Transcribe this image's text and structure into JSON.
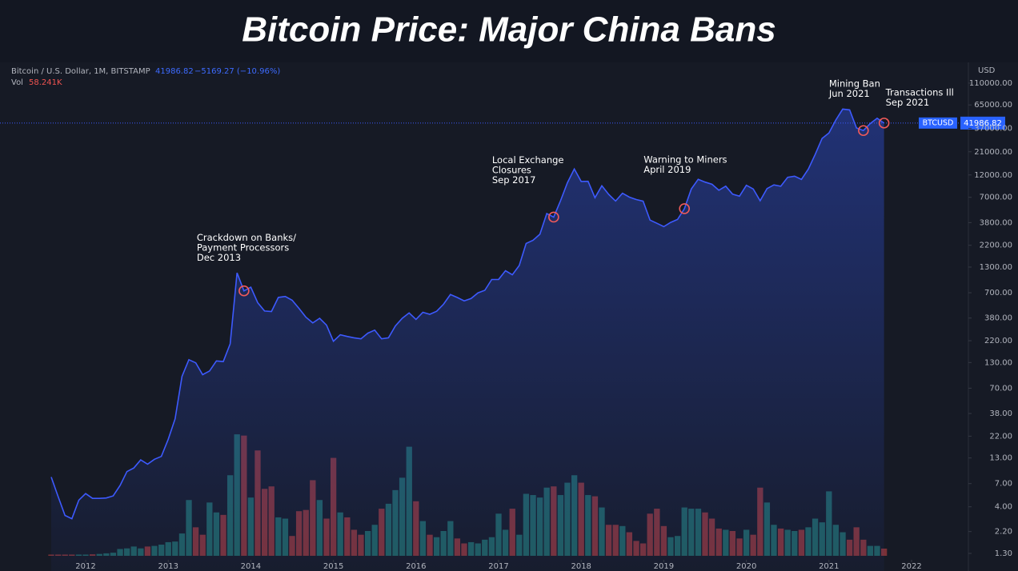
{
  "chart_data": {
    "type": "line",
    "title": "Bitcoin Price: Major China Bans",
    "header": {
      "symbol": "Bitcoin / U.S. Dollar, 1M, BITSTAMP",
      "change": "−5169.27 (−10.96%)",
      "vol_name": "Vol",
      "vol_value": "58.241K"
    },
    "currency": "USD",
    "x": [
      2011.583,
      2011.667,
      2011.75,
      2011.833,
      2011.917,
      2012,
      2012.083,
      2012.167,
      2012.25,
      2012.333,
      2012.417,
      2012.5,
      2012.583,
      2012.667,
      2012.75,
      2012.833,
      2012.917,
      2013,
      2013.083,
      2013.167,
      2013.25,
      2013.333,
      2013.417,
      2013.5,
      2013.583,
      2013.667,
      2013.75,
      2013.833,
      2013.917,
      2014,
      2014.083,
      2014.167,
      2014.25,
      2014.333,
      2014.417,
      2014.5,
      2014.583,
      2014.667,
      2014.75,
      2014.833,
      2014.917,
      2015,
      2015.083,
      2015.167,
      2015.25,
      2015.333,
      2015.417,
      2015.5,
      2015.583,
      2015.667,
      2015.75,
      2015.833,
      2015.917,
      2016,
      2016.083,
      2016.167,
      2016.25,
      2016.333,
      2016.417,
      2016.5,
      2016.583,
      2016.667,
      2016.75,
      2016.833,
      2016.917,
      2017,
      2017.083,
      2017.167,
      2017.25,
      2017.333,
      2017.417,
      2017.5,
      2017.583,
      2017.667,
      2017.75,
      2017.833,
      2017.917,
      2018,
      2018.083,
      2018.167,
      2018.25,
      2018.333,
      2018.417,
      2018.5,
      2018.583,
      2018.667,
      2018.75,
      2018.833,
      2018.917,
      2019,
      2019.083,
      2019.167,
      2019.25,
      2019.333,
      2019.417,
      2019.5,
      2019.583,
      2019.667,
      2019.75,
      2019.833,
      2019.917,
      2020,
      2020.083,
      2020.167,
      2020.25,
      2020.333,
      2020.417,
      2020.5,
      2020.583,
      2020.667,
      2020.75,
      2020.833,
      2020.917,
      2021,
      2021.083,
      2021.167,
      2021.25,
      2021.333,
      2021.417,
      2021.5,
      2021.583,
      2021.667
    ],
    "series": [
      {
        "name": "BTCUSD",
        "color": "#3d5afe",
        "values": [
          8.2,
          5.1,
          3.25,
          3.0,
          4.7,
          5.5,
          4.9,
          4.9,
          4.95,
          5.2,
          6.7,
          9.35,
          10.2,
          12.4,
          11.2,
          12.6,
          13.5,
          20.4,
          33.4,
          93,
          139,
          129,
          97,
          106,
          135,
          133,
          204,
          1130,
          732,
          800,
          550,
          450,
          445,
          625,
          640,
          585,
          480,
          388,
          338,
          378,
          320,
          217,
          254,
          244,
          236,
          230,
          264,
          284,
          230,
          236,
          314,
          378,
          430,
          368,
          437,
          416,
          448,
          531,
          670,
          624,
          575,
          609,
          698,
          742,
          963,
          965,
          1190,
          1080,
          1350,
          2300,
          2480,
          2870,
          4730,
          4340,
          6450,
          9950,
          13850,
          10250,
          10300,
          6930,
          9240,
          7500,
          6400,
          7730,
          7030,
          6630,
          6370,
          4040,
          3740,
          3450,
          3820,
          4100,
          5320,
          8550,
          10800,
          10100,
          9580,
          8300,
          9150,
          7550,
          7200,
          9350,
          8550,
          6440,
          8640,
          9450,
          9140,
          11350,
          11650,
          10780,
          13800,
          19700,
          28990,
          33100,
          45200,
          58800,
          57700,
          37300,
          35040,
          41500,
          47100,
          41986.82
        ]
      },
      {
        "name": "Vol",
        "type": "bar",
        "axis": "y2",
        "up_color": "#1f5c5c",
        "down_color": "#7a3136",
        "values": [
          10000,
          10000,
          10000,
          10000,
          10000,
          10000,
          12000,
          15000,
          20000,
          25000,
          55000,
          60000,
          75000,
          60000,
          75000,
          80000,
          90000,
          110000,
          115000,
          180000,
          450000,
          230000,
          170000,
          430000,
          350000,
          330000,
          650000,
          980000,
          970000,
          470000,
          850000,
          540000,
          560000,
          310000,
          300000,
          160000,
          360000,
          370000,
          610000,
          450000,
          300000,
          790000,
          350000,
          310000,
          210000,
          170000,
          200000,
          250000,
          380000,
          420000,
          530000,
          630000,
          880000,
          440000,
          280000,
          170000,
          150000,
          200000,
          280000,
          140000,
          100000,
          110000,
          100000,
          130000,
          150000,
          340000,
          210000,
          380000,
          170000,
          500000,
          490000,
          470000,
          550000,
          560000,
          490000,
          590000,
          650000,
          590000,
          490000,
          480000,
          390000,
          250000,
          250000,
          240000,
          190000,
          120000,
          100000,
          340000,
          380000,
          240000,
          150000,
          160000,
          390000,
          380000,
          380000,
          350000,
          300000,
          220000,
          210000,
          200000,
          140000,
          210000,
          170000,
          550000,
          430000,
          250000,
          220000,
          210000,
          200000,
          210000,
          230000,
          300000,
          270000,
          520000,
          250000,
          190000,
          130000,
          230000,
          130000,
          80000,
          80000,
          58241
        ]
      }
    ],
    "xlim": [
      2010.963,
      2022.688
    ],
    "xticks": [
      2012,
      2013,
      2014,
      2015,
      2016,
      2017,
      2018,
      2019,
      2020,
      2021,
      2022
    ],
    "ylim": [
      0.85,
      168000
    ],
    "log_y": true,
    "yticks": [
      {
        "value": 1.3,
        "label": "1.30"
      },
      {
        "value": 2.2,
        "label": "2.20"
      },
      {
        "value": 4,
        "label": "4.00"
      },
      {
        "value": 7,
        "label": "7.00"
      },
      {
        "value": 13,
        "label": "13.00"
      },
      {
        "value": 22,
        "label": "22.00"
      },
      {
        "value": 38,
        "label": "38.00"
      },
      {
        "value": 70,
        "label": "70.00"
      },
      {
        "value": 130,
        "label": "130.00"
      },
      {
        "value": 220,
        "label": "220.00"
      },
      {
        "value": 380,
        "label": "380.00"
      },
      {
        "value": 700,
        "label": "700.00"
      },
      {
        "value": 1300,
        "label": "1300.00"
      },
      {
        "value": 2200,
        "label": "2200.00"
      },
      {
        "value": 3800,
        "label": "3800.00"
      },
      {
        "value": 7000,
        "label": "7000.00"
      },
      {
        "value": 12000,
        "label": "12000.00"
      },
      {
        "value": 21000,
        "label": "21000.00"
      },
      {
        "value": 37000,
        "label": "37000.00"
      },
      {
        "value": 65000,
        "label": "65000.00"
      },
      {
        "value": 110000,
        "label": "110000.00"
      }
    ],
    "y2lim": [
      0,
      1000000
    ],
    "annotations": [
      {
        "x": 2013.917,
        "lines": [
          "Crackdown on Banks/",
          "Payment Processors",
          "Dec 2013"
        ]
      },
      {
        "x": 2017.667,
        "lines": [
          "Local Exchange",
          "Closures",
          "Sep 2017"
        ]
      },
      {
        "x": 2019.25,
        "lines": [
          "Warning to Miners",
          "April 2019"
        ]
      },
      {
        "x": 2021.417,
        "lines": [
          "Mining Ban",
          "Jun 2021"
        ]
      },
      {
        "x": 2021.667,
        "lines": [
          "Transactions Ill",
          "Sep 2021"
        ]
      }
    ]
  }
}
